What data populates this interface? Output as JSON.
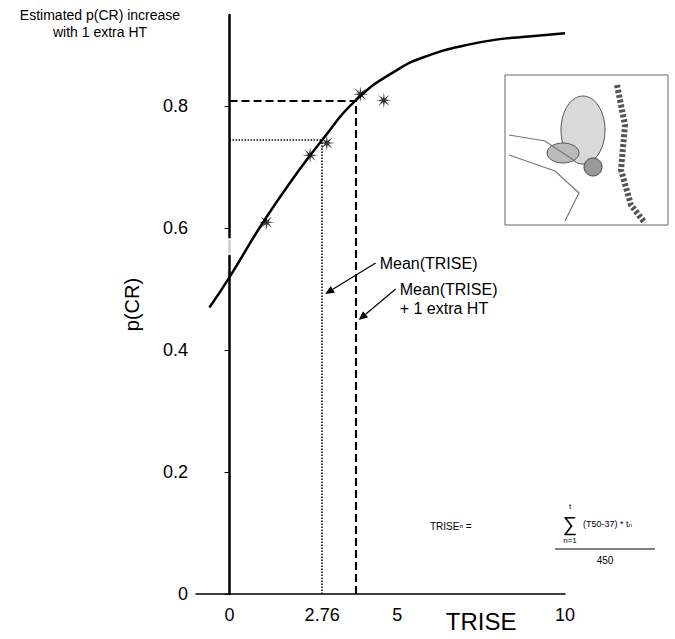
{
  "chart_data": {
    "type": "line",
    "title": "Estimated p(CR) increase\nwith 1 extra HT",
    "x_label": "TRISE",
    "y_label": "p(CR)",
    "xlim": [
      -1,
      10
    ],
    "xticks": [
      0,
      2.76,
      5,
      10
    ],
    "ylim": [
      0,
      0.95
    ],
    "yticks": [
      0,
      0.2,
      0.4,
      0.6,
      0.8
    ],
    "grid": false,
    "series": [
      {
        "type": "line",
        "color": "#000000",
        "line_style": "solid",
        "x": [
          -0.6,
          0,
          1,
          2,
          2.76,
          3.76,
          5,
          6,
          7,
          8,
          9,
          10
        ],
        "values": [
          0.47,
          0.52,
          0.61,
          0.69,
          0.745,
          0.81,
          0.86,
          0.885,
          0.9,
          0.91,
          0.915,
          0.92
        ]
      },
      {
        "type": "scatter",
        "color": "#000000",
        "marker": "asterisk",
        "x": [
          1.1,
          2.4,
          2.9,
          3.9,
          4.6
        ],
        "values": [
          0.61,
          0.72,
          0.74,
          0.82,
          0.81
        ]
      },
      {
        "type": "scatter",
        "color": "#000000",
        "marker": "open_circle",
        "x": [
          0
        ],
        "values": [
          0.57
        ]
      }
    ],
    "reference_lines": [
      {
        "label": "Mean(TRISE)",
        "x": 2.76,
        "y": 0.745,
        "line_style": "dotted"
      },
      {
        "label": "Mean(TRISE)\n+ 1 extra HT",
        "x": 3.76,
        "y": 0.81,
        "line_style": "dashed"
      }
    ],
    "formula": {
      "lhs": "TRISEⁿ =",
      "sum_symbol": "∑",
      "sum_upper": "t",
      "sum_lower": "n=1",
      "numerator": "(T50-37) * tₙ",
      "denominator": "450"
    }
  }
}
